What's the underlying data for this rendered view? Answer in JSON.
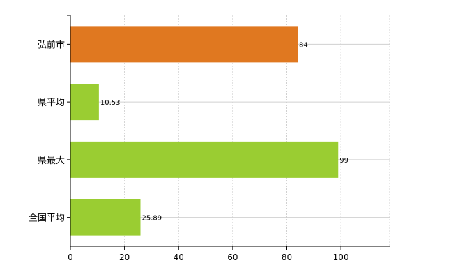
{
  "chart_data": {
    "type": "bar",
    "orientation": "horizontal",
    "categories": [
      "弘前市",
      "県平均",
      "県最大",
      "全国平均"
    ],
    "values": [
      84,
      10.53,
      99,
      25.89
    ],
    "value_labels": [
      "84",
      "10.53",
      "99",
      "25.89"
    ],
    "bar_colors": [
      "#E07820",
      "#9ACD32",
      "#9ACD32",
      "#9ACD32"
    ],
    "xlim": [
      0,
      118
    ],
    "x_ticks": [
      0,
      20,
      40,
      60,
      80,
      100
    ],
    "x_tick_labels": [
      "0",
      "20",
      "40",
      "60",
      "80",
      "100"
    ],
    "grid": true,
    "legend": "none",
    "title": "",
    "xlabel": "",
    "ylabel": ""
  },
  "colors": {
    "grid": "#D0D0D0",
    "axis": "#000000"
  }
}
